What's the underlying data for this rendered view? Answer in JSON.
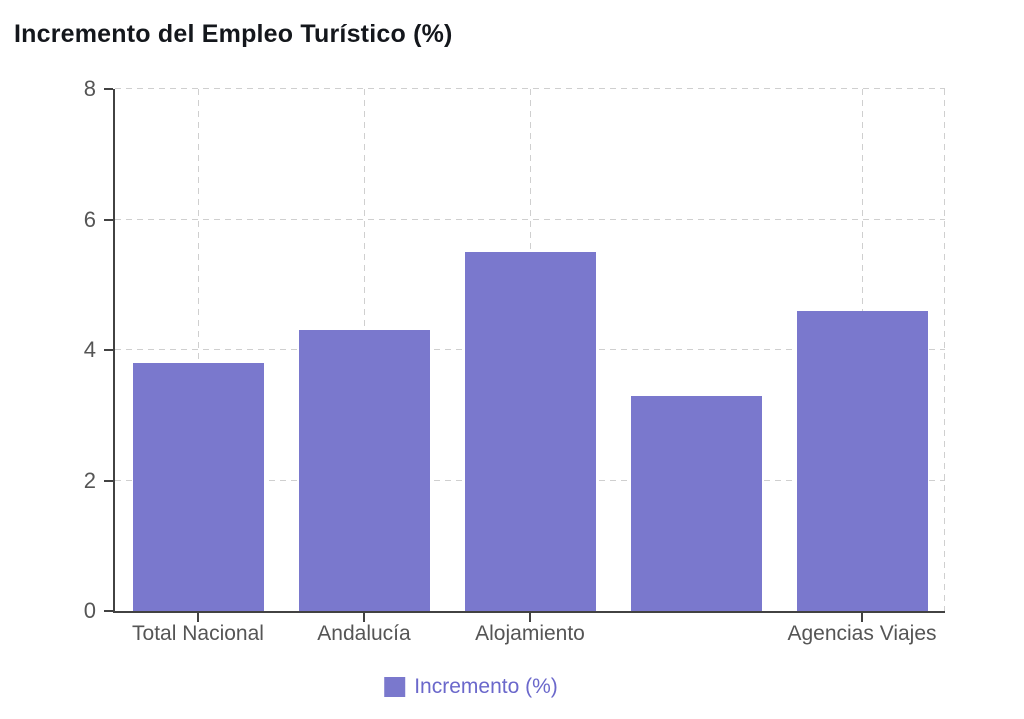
{
  "chart_data": {
    "type": "bar",
    "title": "Incremento del Empleo Turístico (%)",
    "categories": [
      "Total Nacional",
      "Andalucía",
      "Alojamiento",
      "",
      "Agencias Viajes"
    ],
    "series": [
      {
        "name": "Incremento (%)",
        "values": [
          3.8,
          4.3,
          5.5,
          3.3,
          4.6
        ]
      }
    ],
    "xlabel": "",
    "ylabel": "",
    "ylim": [
      0,
      8
    ],
    "yticks": [
      0,
      2,
      4,
      6,
      8
    ],
    "grid": "dashed, horizontal and vertical",
    "legend_position": "bottom",
    "colors": {
      "bar": "#7a78cd",
      "legend_text": "#6b68cb",
      "axis": "#424242",
      "grid": "#cfcfcf",
      "tick_label": "#555555",
      "title": "#14171c"
    }
  }
}
